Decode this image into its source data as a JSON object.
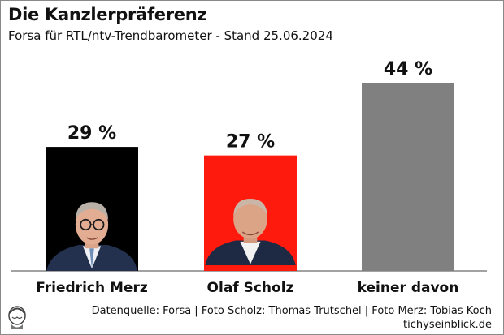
{
  "title": "Die Kanzlerpräferenz",
  "subtitle": "Forsa für RTL/ntv-Trendbarometer - Stand 25.06.2024",
  "chart_data": {
    "type": "bar",
    "categories": [
      "Friedrich Merz",
      "Olaf Scholz",
      "keiner davon"
    ],
    "values": [
      29,
      27,
      44
    ],
    "value_labels": [
      "29 %",
      "27 %",
      "44 %"
    ],
    "colors": [
      "#000000",
      "#ff1a0e",
      "#808080"
    ],
    "images": [
      "portrait-merz",
      "portrait-scholz",
      ""
    ],
    "ylim": [
      0,
      44
    ],
    "grid": false,
    "legend": "none"
  },
  "footer": {
    "source": "Datenquelle: Forsa | Foto Scholz: Thomas Trutschel | Foto Merz: Tobias Koch",
    "site": "tichyseinblick.de"
  }
}
